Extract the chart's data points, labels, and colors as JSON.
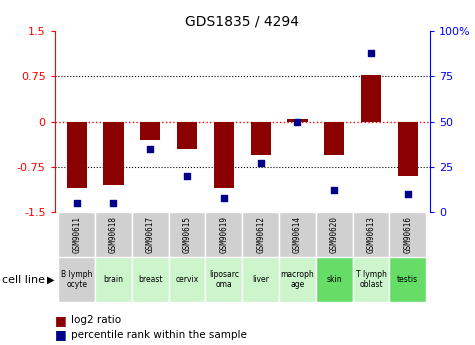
{
  "title": "GDS1835 / 4294",
  "samples": [
    "GSM90611",
    "GSM90618",
    "GSM90617",
    "GSM90615",
    "GSM90619",
    "GSM90612",
    "GSM90614",
    "GSM90620",
    "GSM90613",
    "GSM90616"
  ],
  "cell_lines": [
    "B lymph\nocyte",
    "brain",
    "breast",
    "cervix",
    "liposarc\noma",
    "liver",
    "macroph\nage",
    "skin",
    "T lymph\noblast",
    "testis"
  ],
  "log2_ratio": [
    -1.1,
    -1.05,
    -0.3,
    -0.45,
    -1.1,
    -0.55,
    0.05,
    -0.55,
    0.78,
    -0.9
  ],
  "percentile_rank": [
    5,
    5,
    35,
    20,
    8,
    27,
    50,
    12,
    88,
    10
  ],
  "bar_color": "#8B0000",
  "dot_color": "#00008B",
  "ylim_left": [
    -1.5,
    1.5
  ],
  "ylim_right": [
    0,
    100
  ],
  "yticks_left": [
    -1.5,
    -0.75,
    0,
    0.75,
    1.5
  ],
  "ytick_labels_left": [
    "-1.5",
    "-0.75",
    "0",
    "0.75",
    "1.5"
  ],
  "yticks_right": [
    0,
    25,
    50,
    75,
    100
  ],
  "ytick_labels_right": [
    "0",
    "25",
    "50",
    "75",
    "100%"
  ],
  "hline_color": "#FF0000",
  "grid_color": "#000000",
  "cell_line_bg_light": "#ccf5cc",
  "cell_line_bg_dark": "#66dd66",
  "cell_line_bg_gray": "#d0d0d0",
  "gsm_bg_color": "#d0d0d0",
  "legend_red": "log2 ratio",
  "legend_blue": "percentile rank within the sample",
  "cell_line_label": "cell line",
  "cell_line_colors": [
    "gray",
    "light",
    "light",
    "light",
    "light",
    "light",
    "light",
    "dark",
    "light",
    "dark"
  ]
}
